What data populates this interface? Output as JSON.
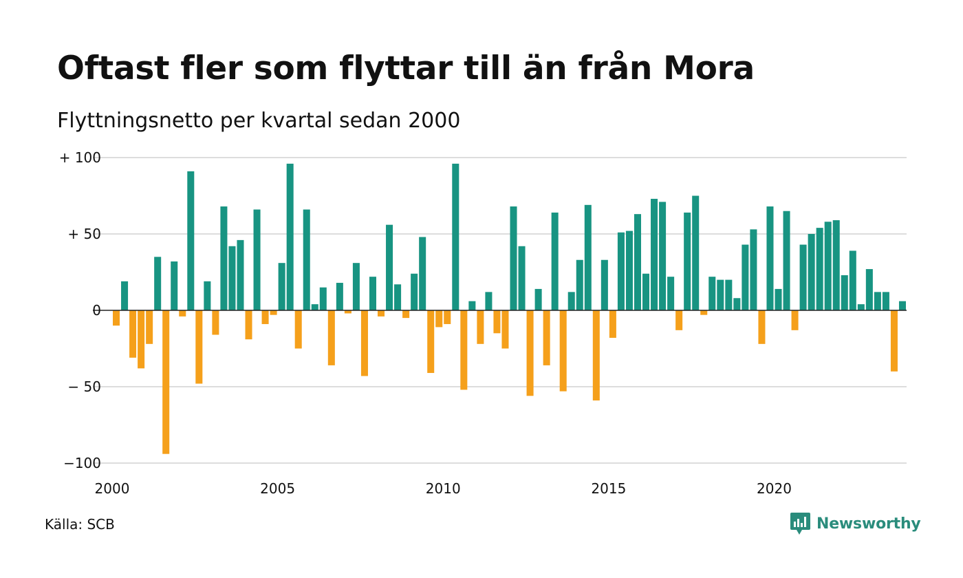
{
  "title": "Oftast fler som flyttar till än från Mora",
  "subtitle": "Flyttningsnetto per kvartal sedan 2000",
  "source": "Källa: SCB",
  "brand": {
    "name": "Newsworthy",
    "icon": "newsworthy-logo-icon",
    "color": "#2a8c7c"
  },
  "chart_data": {
    "type": "bar",
    "start_quarter": "2000 Q1",
    "values": [
      -10,
      19,
      -31,
      -38,
      -22,
      35,
      -94,
      32,
      -4,
      91,
      -48,
      19,
      -16,
      68,
      42,
      46,
      -19,
      66,
      -9,
      -3,
      31,
      96,
      -25,
      66,
      4,
      15,
      -36,
      18,
      -2,
      31,
      -43,
      22,
      -4,
      56,
      17,
      -5,
      24,
      48,
      -41,
      -11,
      -9,
      96,
      -52,
      6,
      -22,
      12,
      -15,
      -25,
      68,
      42,
      -56,
      14,
      -36,
      64,
      -53,
      12,
      33,
      69,
      -59,
      33,
      -18,
      51,
      52,
      63,
      24,
      73,
      71,
      22,
      -13,
      64,
      75,
      -3,
      22,
      20,
      20,
      8,
      43,
      53,
      -22,
      68,
      14,
      65,
      -13,
      43,
      50,
      54,
      58,
      59,
      23,
      39,
      4,
      27,
      12,
      12,
      -40,
      6
    ],
    "xticks": [
      "2000",
      "2005",
      "2010",
      "2015",
      "2020"
    ],
    "xtick_values": [
      2000,
      2005,
      2010,
      2015,
      2020
    ],
    "yticks": [
      100,
      50,
      0,
      -50,
      -100
    ],
    "ytick_labels": [
      "+ 100",
      "+  50",
      "0",
      "− 50",
      "−100"
    ],
    "ylim": [
      -100,
      100
    ],
    "positive_color": "#189482",
    "negative_color": "#f5a01b",
    "grid": true
  }
}
